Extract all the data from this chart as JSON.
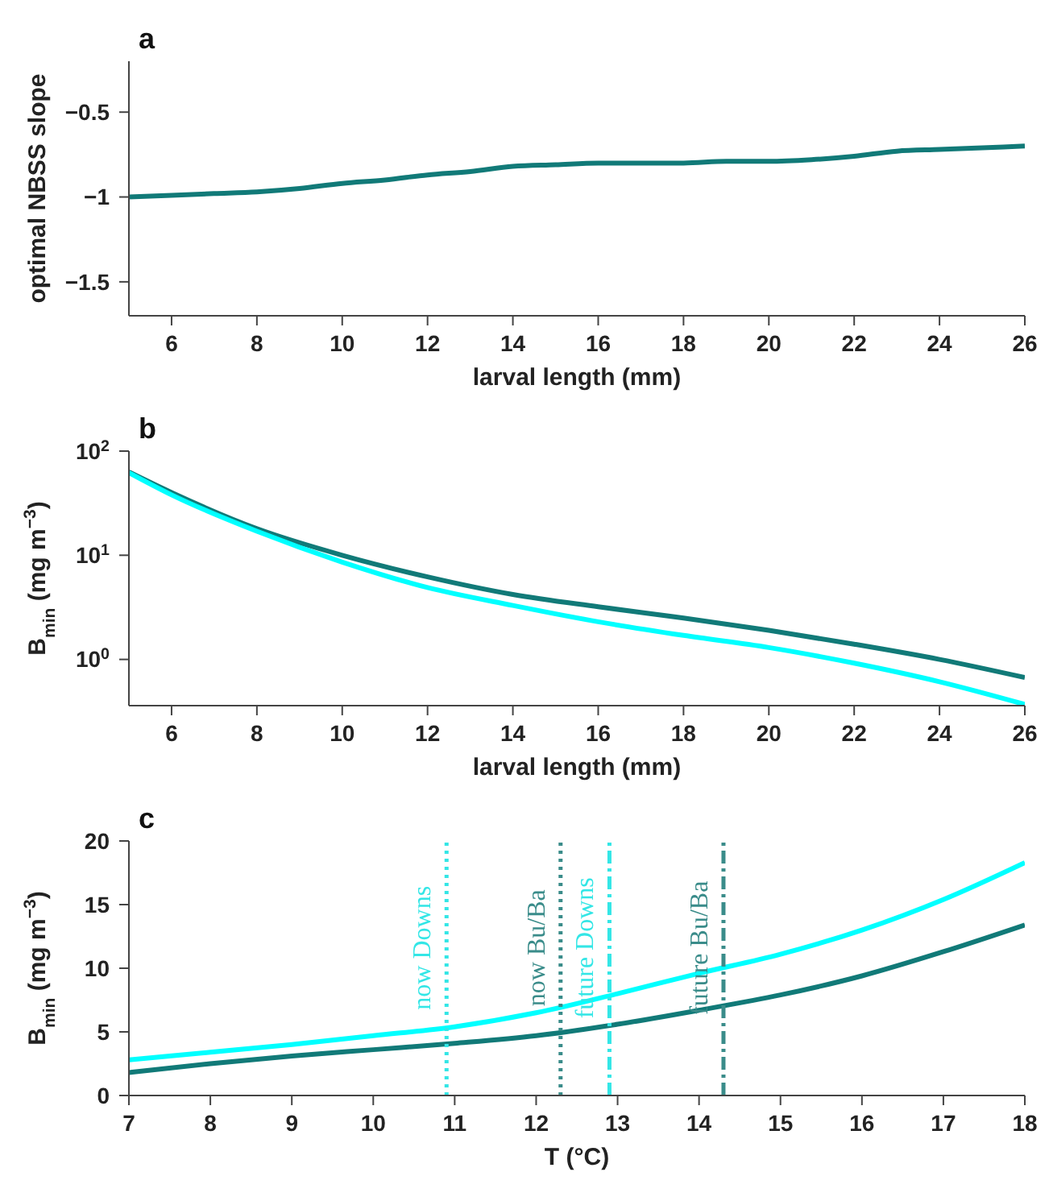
{
  "chart_data": [
    {
      "type": "line",
      "title": "a",
      "xlabel": "larval length (mm)",
      "ylabel": "optimal NBSS slope",
      "xlim": [
        5,
        26
      ],
      "xticks": [
        6,
        8,
        10,
        12,
        14,
        16,
        18,
        20,
        22,
        24,
        26
      ],
      "ylim": [
        -1.7,
        -0.2
      ],
      "yticks": [
        {
          "value": -1.5,
          "label": "−1.5"
        },
        {
          "value": -1,
          "label": "−1"
        },
        {
          "value": -0.5,
          "label": "−0.5"
        }
      ],
      "marker": "none",
      "series": [
        {
          "color": "#117a78",
          "x": [
            5,
            6,
            7,
            8,
            9,
            10,
            11,
            12,
            13,
            14,
            15,
            16,
            17,
            18,
            19,
            20,
            21,
            22,
            23,
            24,
            25,
            26
          ],
          "values": [
            -1.0,
            -0.99,
            -0.98,
            -0.97,
            -0.95,
            -0.92,
            -0.9,
            -0.87,
            -0.85,
            -0.82,
            -0.81,
            -0.8,
            -0.8,
            -0.8,
            -0.79,
            -0.79,
            -0.78,
            -0.76,
            -0.73,
            -0.72,
            -0.71,
            -0.7
          ]
        }
      ]
    },
    {
      "type": "line",
      "title": "b",
      "xlabel": "larval length (mm)",
      "ylabel": "B$_{min}$ (mg m$^{−3}$)",
      "xlim": [
        5,
        26
      ],
      "xticks": [
        6,
        8,
        10,
        12,
        14,
        16,
        18,
        20,
        22,
        24,
        26
      ],
      "ylim": [
        0.36,
        100
      ],
      "yticks": [
        {
          "value": 1,
          "label": "10$^{0}$"
        },
        {
          "value": 10,
          "label": "10$^{1}$"
        },
        {
          "value": 100,
          "label": "10$^{2}$"
        }
      ],
      "log": "y",
      "marker": "none",
      "series": [
        {
          "color": "#117a78",
          "x": [
            5,
            6,
            8,
            10,
            12,
            14,
            16,
            18,
            20,
            22,
            24,
            26
          ],
          "values": [
            63,
            40,
            18,
            10,
            6.2,
            4.2,
            3.2,
            2.5,
            1.9,
            1.4,
            1.0,
            0.67
          ]
        },
        {
          "color": "#00ffff",
          "x": [
            5,
            6,
            8,
            10,
            12,
            14,
            16,
            18,
            20,
            22,
            24,
            26
          ],
          "values": [
            62,
            38,
            17,
            8.6,
            4.9,
            3.3,
            2.3,
            1.7,
            1.3,
            0.92,
            0.61,
            0.37
          ]
        }
      ]
    },
    {
      "type": "line",
      "title": "c",
      "xlabel": "T (°C)",
      "ylabel": "B$_{min}$ (mg m$^{−3}$)",
      "xlim": [
        7,
        18
      ],
      "xticks": [
        7,
        8,
        9,
        10,
        11,
        12,
        13,
        14,
        15,
        16,
        17,
        18
      ],
      "ylim": [
        0,
        20
      ],
      "yticks": [
        0,
        5,
        10,
        15,
        20
      ],
      "marker": "none",
      "series": [
        {
          "color": "#00ffff",
          "x": [
            7,
            8,
            9,
            10,
            11,
            12,
            13,
            14,
            15,
            16,
            17,
            18
          ],
          "values": [
            2.8,
            3.4,
            4.0,
            4.7,
            5.4,
            6.5,
            8.0,
            9.6,
            11.1,
            13.0,
            15.4,
            18.3
          ]
        },
        {
          "color": "#117a78",
          "x": [
            7,
            8,
            9,
            10,
            11,
            12,
            13,
            14,
            15,
            16,
            17,
            18
          ],
          "values": [
            1.8,
            2.5,
            3.1,
            3.6,
            4.1,
            4.7,
            5.6,
            6.7,
            7.9,
            9.4,
            11.3,
            13.4
          ]
        }
      ],
      "ref_lines": [
        {
          "axis": "x",
          "value": 10.9,
          "label": "now Downs",
          "color": "#33e6e6",
          "line_style": "dotted"
        },
        {
          "axis": "x",
          "value": 12.3,
          "label": "now  Bu/Ba",
          "color": "#3a8c8a",
          "line_style": "dotted"
        },
        {
          "axis": "x",
          "value": 12.9,
          "label": "future Downs",
          "color": "#33e6e6",
          "line_style": "dashed"
        },
        {
          "axis": "x",
          "value": 14.3,
          "label": "future Bu/Ba",
          "color": "#3a8c8a",
          "line_style": "dashed"
        }
      ]
    }
  ]
}
